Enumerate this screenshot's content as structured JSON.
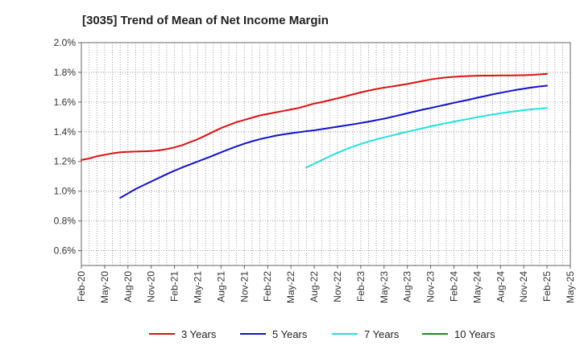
{
  "chart_data": {
    "type": "line",
    "title": "[3035]  Trend of Mean of Net Income Margin",
    "xlabel": "",
    "ylabel": "",
    "x_ticks": [
      "Feb-20",
      "May-20",
      "Aug-20",
      "Nov-20",
      "Feb-21",
      "May-21",
      "Aug-21",
      "Nov-21",
      "Feb-22",
      "May-22",
      "Aug-22",
      "Nov-22",
      "Feb-23",
      "May-23",
      "Aug-23",
      "Nov-23",
      "Feb-24",
      "May-24",
      "Aug-24",
      "Nov-24",
      "Feb-25",
      "May-25"
    ],
    "y_ticks": [
      "0.6%",
      "0.8%",
      "1.0%",
      "1.2%",
      "1.4%",
      "1.6%",
      "1.8%",
      "2.0%"
    ],
    "ylim": [
      0.5,
      2.0
    ],
    "grid": true,
    "legend_position": "bottom",
    "series": [
      {
        "name": "3 Years",
        "color": "#dd1111",
        "x": [
          "Feb-20",
          "Mar-20",
          "Apr-20",
          "May-20",
          "Jun-20",
          "Jul-20",
          "Aug-20",
          "Sep-20",
          "Oct-20",
          "Nov-20",
          "Dec-20",
          "Jan-21",
          "Feb-21",
          "Mar-21",
          "Apr-21",
          "May-21",
          "Jun-21",
          "Jul-21",
          "Aug-21",
          "Sep-21",
          "Oct-21",
          "Nov-21",
          "Dec-21",
          "Jan-22",
          "Feb-22",
          "Mar-22",
          "Apr-22",
          "May-22",
          "Jun-22",
          "Jul-22",
          "Aug-22",
          "Sep-22",
          "Oct-22",
          "Nov-22",
          "Dec-22",
          "Jan-23",
          "Feb-23",
          "Mar-23",
          "Apr-23",
          "May-23",
          "Jun-23",
          "Jul-23",
          "Aug-23",
          "Sep-23",
          "Oct-23",
          "Nov-23",
          "Dec-23",
          "Jan-24",
          "Feb-24",
          "Mar-24",
          "Apr-24",
          "May-24",
          "Jun-24",
          "Jul-24",
          "Aug-24",
          "Sep-24",
          "Oct-24",
          "Nov-24",
          "Dec-24",
          "Jan-25",
          "Feb-25"
        ],
        "values": [
          1.21,
          1.22,
          1.235,
          1.245,
          1.255,
          1.262,
          1.265,
          1.267,
          1.268,
          1.27,
          1.275,
          1.283,
          1.295,
          1.31,
          1.33,
          1.35,
          1.375,
          1.4,
          1.425,
          1.445,
          1.465,
          1.48,
          1.495,
          1.51,
          1.52,
          1.53,
          1.54,
          1.55,
          1.56,
          1.575,
          1.59,
          1.6,
          1.613,
          1.625,
          1.638,
          1.652,
          1.665,
          1.677,
          1.688,
          1.697,
          1.705,
          1.713,
          1.722,
          1.732,
          1.742,
          1.752,
          1.76,
          1.766,
          1.77,
          1.773,
          1.775,
          1.777,
          1.778,
          1.778,
          1.779,
          1.779,
          1.78,
          1.781,
          1.783,
          1.786,
          1.79
        ]
      },
      {
        "name": "5 Years",
        "color": "#1111cc",
        "x": [
          "Jul-20",
          "Aug-20",
          "Sep-20",
          "Oct-20",
          "Nov-20",
          "Dec-20",
          "Jan-21",
          "Feb-21",
          "Mar-21",
          "Apr-21",
          "May-21",
          "Jun-21",
          "Jul-21",
          "Aug-21",
          "Sep-21",
          "Oct-21",
          "Nov-21",
          "Dec-21",
          "Jan-22",
          "Feb-22",
          "Mar-22",
          "Apr-22",
          "May-22",
          "Jun-22",
          "Jul-22",
          "Aug-22",
          "Sep-22",
          "Oct-22",
          "Nov-22",
          "Dec-22",
          "Jan-23",
          "Feb-23",
          "Mar-23",
          "Apr-23",
          "May-23",
          "Jun-23",
          "Jul-23",
          "Aug-23",
          "Sep-23",
          "Oct-23",
          "Nov-23",
          "Dec-23",
          "Jan-24",
          "Feb-24",
          "Mar-24",
          "Apr-24",
          "May-24",
          "Jun-24",
          "Jul-24",
          "Aug-24",
          "Sep-24",
          "Oct-24",
          "Nov-24",
          "Dec-24",
          "Jan-25",
          "Feb-25"
        ],
        "values": [
          0.955,
          0.985,
          1.015,
          1.04,
          1.065,
          1.09,
          1.115,
          1.138,
          1.16,
          1.18,
          1.2,
          1.22,
          1.24,
          1.262,
          1.282,
          1.302,
          1.32,
          1.336,
          1.35,
          1.362,
          1.373,
          1.382,
          1.39,
          1.397,
          1.404,
          1.41,
          1.418,
          1.426,
          1.434,
          1.442,
          1.45,
          1.459,
          1.468,
          1.478,
          1.488,
          1.5,
          1.512,
          1.525,
          1.537,
          1.549,
          1.56,
          1.572,
          1.583,
          1.595,
          1.606,
          1.617,
          1.629,
          1.64,
          1.652,
          1.662,
          1.672,
          1.682,
          1.69,
          1.698,
          1.705,
          1.71
        ]
      },
      {
        "name": "7 Years",
        "color": "#22e0e0",
        "x": [
          "Jul-22",
          "Aug-22",
          "Sep-22",
          "Oct-22",
          "Nov-22",
          "Dec-22",
          "Jan-23",
          "Feb-23",
          "Mar-23",
          "Apr-23",
          "May-23",
          "Jun-23",
          "Jul-23",
          "Aug-23",
          "Sep-23",
          "Oct-23",
          "Nov-23",
          "Dec-23",
          "Jan-24",
          "Feb-24",
          "Mar-24",
          "Apr-24",
          "May-24",
          "Jun-24",
          "Jul-24",
          "Aug-24",
          "Sep-24",
          "Oct-24",
          "Nov-24",
          "Dec-24",
          "Jan-25",
          "Feb-25"
        ],
        "values": [
          1.16,
          1.185,
          1.21,
          1.235,
          1.258,
          1.28,
          1.3,
          1.318,
          1.334,
          1.349,
          1.362,
          1.375,
          1.388,
          1.4,
          1.412,
          1.424,
          1.436,
          1.447,
          1.458,
          1.468,
          1.478,
          1.488,
          1.498,
          1.507,
          1.516,
          1.524,
          1.532,
          1.539,
          1.545,
          1.551,
          1.556,
          1.56
        ]
      },
      {
        "name": "10 Years",
        "color": "#228822",
        "x": [],
        "values": []
      }
    ]
  }
}
